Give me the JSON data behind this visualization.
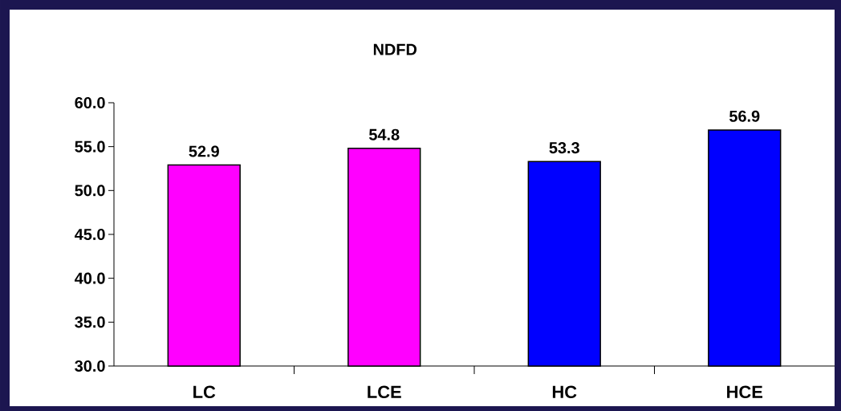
{
  "chart_data": {
    "type": "bar",
    "title": "NDFD",
    "categories": [
      "LC",
      "LCE",
      "HC",
      "HCE"
    ],
    "values": [
      52.9,
      54.8,
      53.3,
      56.9
    ],
    "colors": [
      "#ff00ff",
      "#ff00ff",
      "#0000ff",
      "#0000ff"
    ],
    "ylim": [
      30,
      60
    ],
    "yticks": [
      {
        "value": 30,
        "label": "30.0"
      },
      {
        "value": 35,
        "label": "35.0"
      },
      {
        "value": 40,
        "label": "40.0"
      },
      {
        "value": 45,
        "label": "45.0"
      },
      {
        "value": 50,
        "label": "50.0"
      },
      {
        "value": 55,
        "label": "55.0"
      },
      {
        "value": 60,
        "label": "60.0"
      }
    ],
    "data_labels": true,
    "grid": false
  }
}
